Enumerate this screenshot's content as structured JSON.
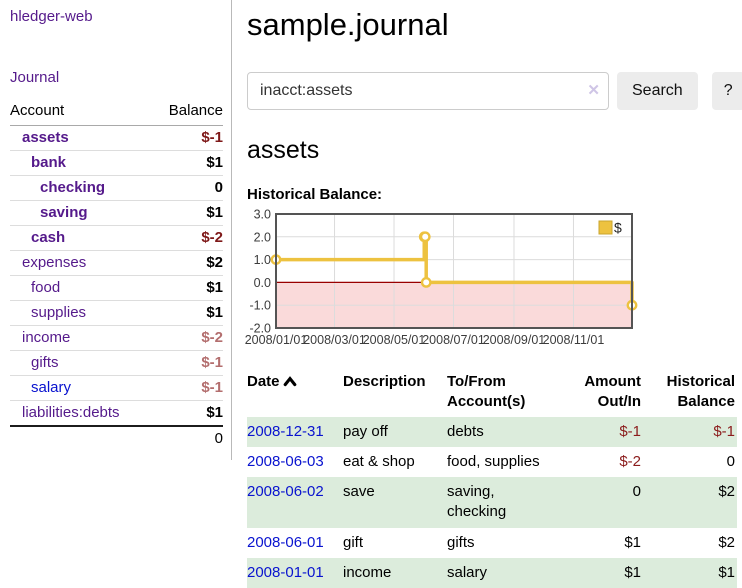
{
  "app": {
    "brand": "hledger-web",
    "nav_journal": "Journal"
  },
  "sidebar": {
    "accounts_header": {
      "account": "Account",
      "balance": "Balance"
    },
    "accounts": [
      {
        "name": "assets",
        "indent": 1,
        "bold": true,
        "link_style": "purple",
        "balance": "$-1",
        "balance_style": "neg-dark"
      },
      {
        "name": "bank",
        "indent": 2,
        "bold": true,
        "link_style": "purple",
        "balance": "$1",
        "balance_style": "pos"
      },
      {
        "name": "checking",
        "indent": 3,
        "bold": true,
        "link_style": "purple",
        "balance": "0",
        "balance_style": "pos"
      },
      {
        "name": "saving",
        "indent": 3,
        "bold": true,
        "link_style": "purple",
        "balance": "$1",
        "balance_style": "pos"
      },
      {
        "name": "cash",
        "indent": 2,
        "bold": true,
        "link_style": "purple",
        "balance": "$-2",
        "balance_style": "neg-dark"
      },
      {
        "name": "expenses",
        "indent": 1,
        "bold": false,
        "link_style": "purple",
        "balance": "$2",
        "balance_style": "pos"
      },
      {
        "name": "food",
        "indent": 2,
        "bold": false,
        "link_style": "purple",
        "balance": "$1",
        "balance_style": "pos"
      },
      {
        "name": "supplies",
        "indent": 2,
        "bold": false,
        "link_style": "purple",
        "balance": "$1",
        "balance_style": "pos"
      },
      {
        "name": "income",
        "indent": 1,
        "bold": false,
        "link_style": "purple",
        "balance": "$-2",
        "balance_style": "neg-light"
      },
      {
        "name": "gifts",
        "indent": 2,
        "bold": false,
        "link_style": "purple",
        "balance": "$-1",
        "balance_style": "neg-light"
      },
      {
        "name": "salary",
        "indent": 2,
        "bold": false,
        "link_style": "blue",
        "balance": "$-1",
        "balance_style": "neg-light"
      },
      {
        "name": "liabilities:debts",
        "indent": 1,
        "bold": false,
        "link_style": "purple",
        "balance": "$1",
        "balance_style": "pos"
      }
    ],
    "total": "0"
  },
  "header": {
    "title": "sample.journal"
  },
  "search": {
    "value": "inacct:assets",
    "clear_icon": "✕",
    "button": "Search",
    "help_button": "?"
  },
  "account_page": {
    "heading": "assets",
    "chart_label": "Historical Balance:"
  },
  "chart_data": {
    "type": "line",
    "step": true,
    "title": "Historical Balance:",
    "series": [
      {
        "name": "$",
        "color": "#EDC240",
        "points": [
          {
            "date": "2008-01-01",
            "value": 1
          },
          {
            "date": "2008-06-01",
            "value": 2
          },
          {
            "date": "2008-06-02",
            "value": 2
          },
          {
            "date": "2008-06-03",
            "value": 0
          },
          {
            "date": "2008-12-31",
            "value": -1
          }
        ]
      }
    ],
    "x_range": [
      "2008-01-01",
      "2008-12-31"
    ],
    "x_tick_labels": [
      "2008/01/01",
      "2008/03/01",
      "2008/05/01",
      "2008/07/01",
      "2008/09/01",
      "2008/11/01"
    ],
    "y_tick_labels": [
      "3.0",
      "2.0",
      "1.0",
      "0.0",
      "-1.0",
      "-2.0"
    ],
    "y_ticks": [
      3,
      2,
      1,
      0,
      -1,
      -2
    ],
    "ylim": [
      -2,
      3
    ],
    "grid": true,
    "legend_position": "top-right",
    "legend": [
      "$"
    ],
    "negative_region_color": "#fadada",
    "zero_line_color": "#990000",
    "grid_color": "#dcdcdc",
    "border_color": "#545454",
    "tick_text_color": "#3c3c3c"
  },
  "register": {
    "columns": [
      "Date",
      "Description",
      "To/From Account(s)",
      "Amount Out/In",
      "Historical Balance"
    ],
    "sort_icon": "chevron-up-icon",
    "rows": [
      {
        "date": "2008-12-31",
        "description": "pay off",
        "accounts": "debts",
        "amount": "$-1",
        "amount_style": "neg",
        "balance": "$-1",
        "balance_style": "neg",
        "shaded": true
      },
      {
        "date": "2008-06-03",
        "description": "eat & shop",
        "accounts": "food, supplies",
        "amount": "$-2",
        "amount_style": "neg",
        "balance": "0",
        "balance_style": "pos",
        "shaded": false
      },
      {
        "date": "2008-06-02",
        "description": "save",
        "accounts": "saving, checking",
        "amount": "0",
        "amount_style": "pos",
        "balance": "$2",
        "balance_style": "pos",
        "shaded": true
      },
      {
        "date": "2008-06-01",
        "description": "gift",
        "accounts": "gifts",
        "amount": "$1",
        "amount_style": "pos",
        "balance": "$2",
        "balance_style": "pos",
        "shaded": false
      },
      {
        "date": "2008-01-01",
        "description": "income",
        "accounts": "salary",
        "amount": "$1",
        "amount_style": "pos",
        "balance": "$1",
        "balance_style": "pos",
        "shaded": true
      }
    ]
  },
  "colors": {
    "link_purple": "#551a8b",
    "link_blue": "#0913cf",
    "negative_dark": "#7e1818",
    "negative_light": "#b36e6e",
    "table_negative": "#8b1c1c",
    "row_shade_green": "#dcecdc",
    "series_gold": "#EDC240"
  }
}
